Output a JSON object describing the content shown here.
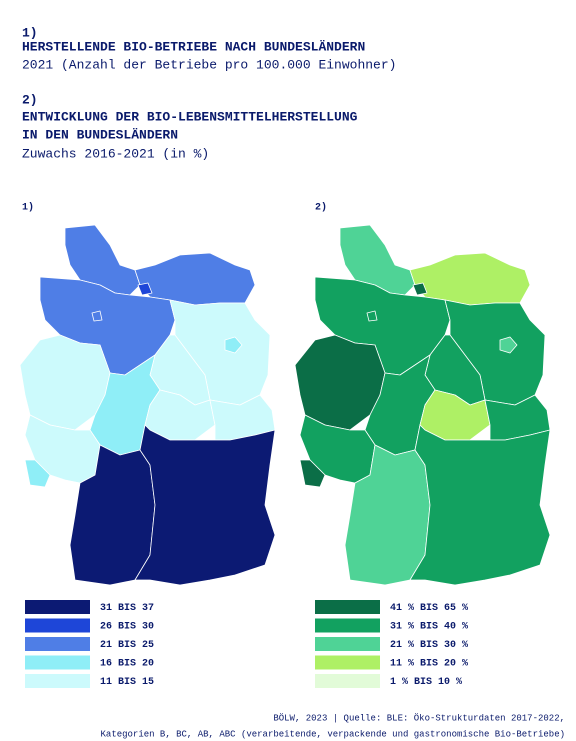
{
  "header": {
    "part1_number": "1)",
    "part1_title": "HERSTELLENDE BIO-BETRIEBE NACH BUNDESLÄNDERN",
    "part1_subtitle": "2021 (Anzahl der Betriebe pro 100.000 Einwohner)",
    "part2_number": "2)",
    "part2_title_line1": "ENTWICKLUNG DER BIO-LEBENSMITTELHERSTELLUNG",
    "part2_title_line2": "IN DEN BUNDESLÄNDERN",
    "part2_subtitle": "Zuwachs 2016-2021 (in %)"
  },
  "maps": [
    {
      "label": "1)",
      "legend": [
        {
          "label": "31 BIS 37",
          "color": "#0c1a73"
        },
        {
          "label": "26 BIS 30",
          "color": "#1e46d8"
        },
        {
          "label": "21 BIS 25",
          "color": "#4f7ee6"
        },
        {
          "label": "16 BIS 20",
          "color": "#8feef7"
        },
        {
          "label": "11 BIS 15",
          "color": "#ccfafc"
        }
      ]
    },
    {
      "label": "2)",
      "legend": [
        {
          "label": "41 % BIS 65 %",
          "color": "#0b6e47"
        },
        {
          "label": "31 % BIS 40 %",
          "color": "#12a160"
        },
        {
          "label": "21 % BIS 30 %",
          "color": "#4fd396"
        },
        {
          "label": "11 % BIS 20 %",
          "color": "#aef065"
        },
        {
          "label": "1 % BIS 10 %",
          "color": "#e2fbd8"
        }
      ]
    }
  ],
  "footer": {
    "line1": "BÖLW, 2023 | Quelle: BLE: Öko-Strukturdaten 2017-2022,",
    "line2": "Kategorien B, BC, AB, ABC (verarbeitende, verpackende und gastronomische Bio-Betriebe)"
  }
}
